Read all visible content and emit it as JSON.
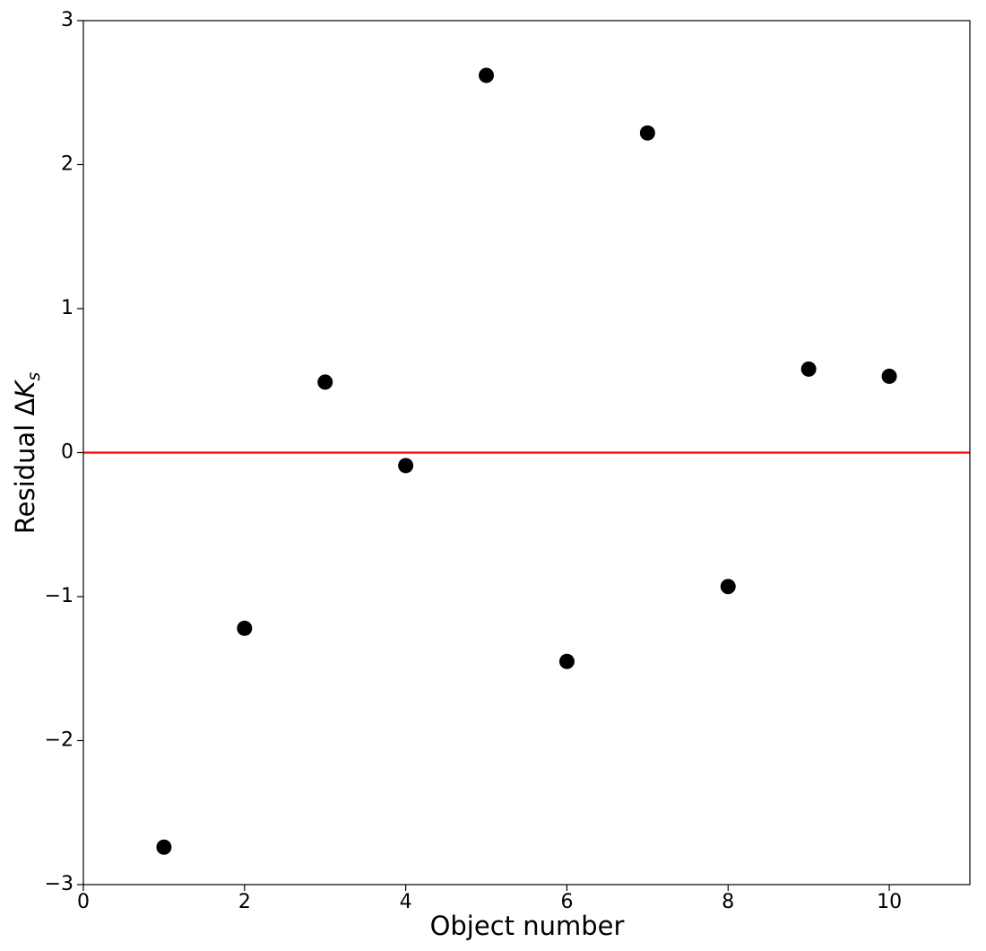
{
  "chart_data": {
    "type": "scatter",
    "xlabel": "Object number",
    "ylabel": {
      "text": "Residual Δ",
      "italic": "K",
      "subscript": "s"
    },
    "x": [
      1,
      2,
      3,
      4,
      5,
      6,
      7,
      8,
      9,
      10
    ],
    "values": [
      -2.74,
      -1.22,
      0.49,
      -0.09,
      2.62,
      -1.45,
      2.22,
      -0.93,
      0.58,
      0.53
    ],
    "color": "#000000",
    "xlim": [
      0,
      11
    ],
    "xticks": [
      0,
      2,
      4,
      6,
      8,
      10
    ],
    "ylim": [
      -3,
      3
    ],
    "yticks": [
      {
        "value": -3,
        "label": "−3"
      },
      {
        "value": -2,
        "label": "−2"
      },
      {
        "value": -1,
        "label": "−1"
      },
      0,
      1,
      2,
      3
    ],
    "hline": 0,
    "hline_color": "#ff0000"
  }
}
